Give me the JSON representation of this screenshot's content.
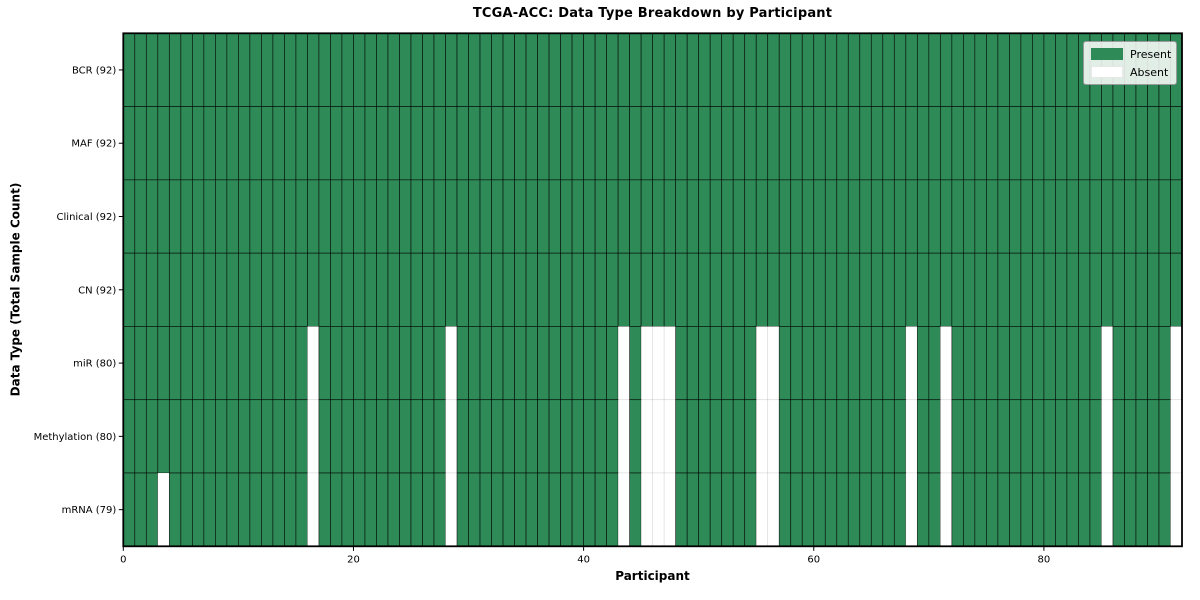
{
  "chart_data": {
    "type": "heatmap",
    "title": "TCGA-ACC: Data Type Breakdown by Participant",
    "xlabel": "Participant",
    "ylabel": "Data Type (Total Sample Count)",
    "n_participants": 92,
    "x_ticks": [
      0,
      20,
      40,
      60,
      80
    ],
    "present_color": "#2e8b57",
    "absent_color": "#ffffff",
    "grid": "cell borders on present cells only",
    "legend_position": "upper right",
    "legend_items": [
      {
        "label": "Present",
        "color": "#2e8b57"
      },
      {
        "label": "Absent",
        "color": "#ffffff"
      }
    ],
    "rows": [
      {
        "label": "BCR (92)",
        "data_type": "BCR",
        "total_samples": 92,
        "absent_participants": []
      },
      {
        "label": "MAF (92)",
        "data_type": "MAF",
        "total_samples": 92,
        "absent_participants": []
      },
      {
        "label": "Clinical (92)",
        "data_type": "Clinical",
        "total_samples": 92,
        "absent_participants": []
      },
      {
        "label": "CN (92)",
        "data_type": "CN",
        "total_samples": 92,
        "absent_participants": []
      },
      {
        "label": "miR (80)",
        "data_type": "miR",
        "total_samples": 80,
        "absent_participants": [
          16,
          28,
          43,
          45,
          46,
          47,
          55,
          56,
          68,
          71,
          85,
          91
        ]
      },
      {
        "label": "Methylation (80)",
        "data_type": "Methylation",
        "total_samples": 80,
        "absent_participants": [
          16,
          28,
          43,
          45,
          46,
          47,
          55,
          56,
          68,
          71,
          85,
          91
        ]
      },
      {
        "label": "mRNA (79)",
        "data_type": "mRNA",
        "total_samples": 79,
        "absent_participants": [
          3,
          16,
          28,
          43,
          45,
          46,
          47,
          55,
          56,
          68,
          71,
          85,
          91
        ]
      }
    ]
  }
}
